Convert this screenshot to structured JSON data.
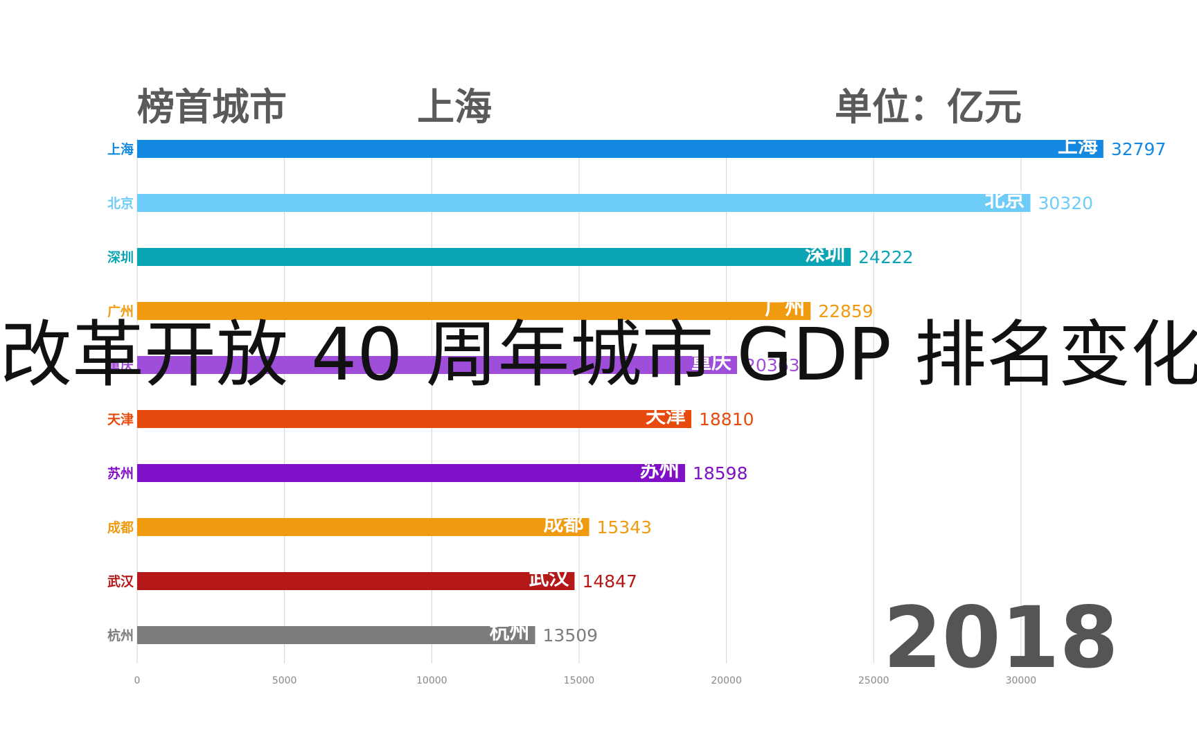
{
  "header": {
    "top_city_label": "榜首城市",
    "top_city_value": "上海",
    "unit_label": "单位：亿元"
  },
  "overlay_title": "改革开放 40 周年城市 GDP 排名变化",
  "year": "2018",
  "chart_data": {
    "type": "bar",
    "orientation": "horizontal",
    "title": "",
    "xlabel": "",
    "ylabel": "",
    "xlim": [
      0,
      33600
    ],
    "xticks": [
      0,
      5000,
      10000,
      15000,
      20000,
      25000,
      30000
    ],
    "grid": true,
    "categories": [
      "上海",
      "北京",
      "深圳",
      "广州",
      "重庆",
      "天津",
      "苏州",
      "成都",
      "武汉",
      "杭州"
    ],
    "values": [
      32797,
      30320,
      24222,
      22859,
      20363,
      18810,
      18598,
      15343,
      14847,
      13509
    ],
    "colors": [
      "#1288e0",
      "#6dccf8",
      "#0aa4b4",
      "#f09a10",
      "#9e4ed8",
      "#e64a0c",
      "#8010c8",
      "#f09a10",
      "#b41818",
      "#7c7c7c"
    ]
  }
}
